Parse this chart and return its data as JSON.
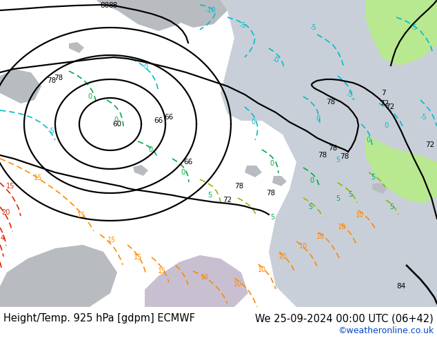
{
  "title_left": "Height/Temp. 925 hPa [gdpm] ECMWF",
  "title_right": "We 25-09-2024 00:00 UTC (06+42)",
  "watermark": "©weatheronline.co.uk",
  "bg_map_color": "#b8e890",
  "sea_color": "#c8cfd8",
  "gray_land_color": "#b8bcc0",
  "light_purple_color": "#c8c0d0",
  "bottom_bg": "#d8d8d8",
  "title_fontsize": 10.5,
  "watermark_fontsize": 9,
  "black_contour_lw": 1.6,
  "temp_contour_lw": 1.2
}
